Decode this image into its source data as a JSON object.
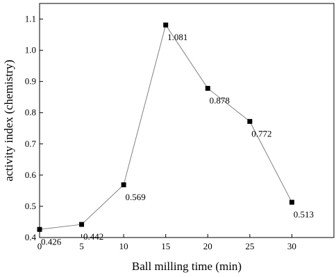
{
  "chart_data": {
    "type": "line",
    "xlabel": "Ball milling time (min)",
    "ylabel": "activity index (chemistry)",
    "xlim": [
      0,
      35
    ],
    "ylim": [
      0.4,
      1.15
    ],
    "xticks": [
      0,
      5,
      10,
      15,
      20,
      25,
      30
    ],
    "yticks": [
      0.4,
      0.5,
      0.6,
      0.7,
      0.8,
      0.9,
      1.0,
      1.1
    ],
    "ytick_labels": [
      "0.4",
      "0.5",
      "0.6",
      "0.7",
      "0.8",
      "0.9",
      "1.0",
      "1.1"
    ],
    "grid": false,
    "legend": "none",
    "marker": "square",
    "line_color": "#808080",
    "marker_color": "#000000",
    "x": [
      0,
      5,
      10,
      15,
      20,
      25,
      30
    ],
    "y": [
      0.426,
      0.442,
      0.569,
      1.081,
      0.878,
      0.772,
      0.513
    ],
    "labels": [
      "0.426",
      "0.442",
      "0.569",
      "1.081",
      "0.878",
      "0.772",
      "0.513"
    ]
  }
}
